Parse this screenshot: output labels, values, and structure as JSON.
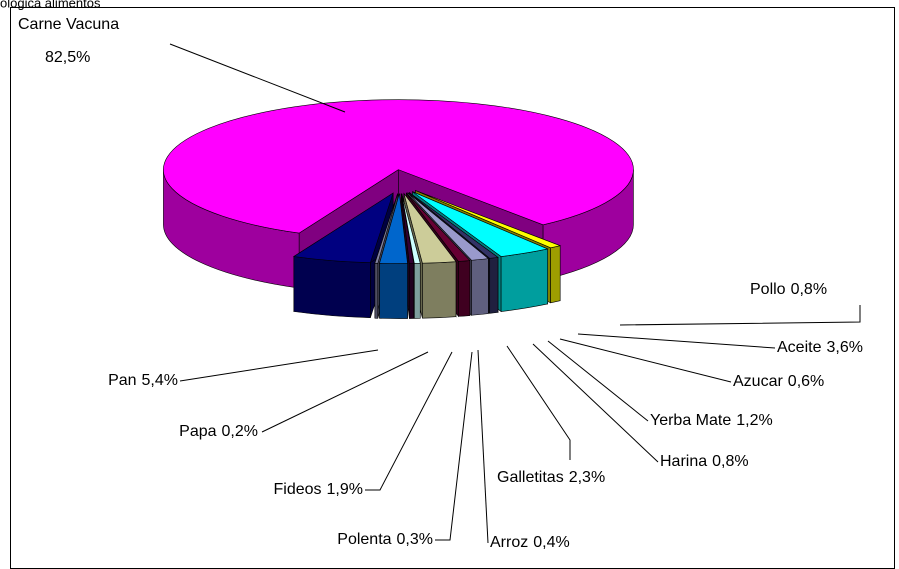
{
  "chart_data": {
    "type": "pie3d",
    "title": "ológica alimentos",
    "categories": [
      "Carne Vacuna",
      "Pollo",
      "Aceite",
      "Azucar",
      "Yerba Mate",
      "Harina",
      "Galletitas",
      "Arroz",
      "Polenta",
      "Fideos",
      "Papa",
      "Pan"
    ],
    "values": [
      82.5,
      0.8,
      3.6,
      0.6,
      1.2,
      0.8,
      2.3,
      0.4,
      0.3,
      1.9,
      0.2,
      5.4
    ],
    "value_labels": [
      "82,5%",
      "0,8%",
      "3,6%",
      "0,6%",
      "1,2%",
      "0,8%",
      "2,3%",
      "0,4%",
      "0,3%",
      "1,9%",
      "0,2%",
      "5,4%"
    ],
    "colors": [
      "#ff00ff",
      "#ffff00",
      "#00ffff",
      "#333366",
      "#9999cc",
      "#660033",
      "#cccc99",
      "#ccffff",
      "#330033",
      "#0066cc",
      "#8080a0",
      "#000080"
    ]
  }
}
